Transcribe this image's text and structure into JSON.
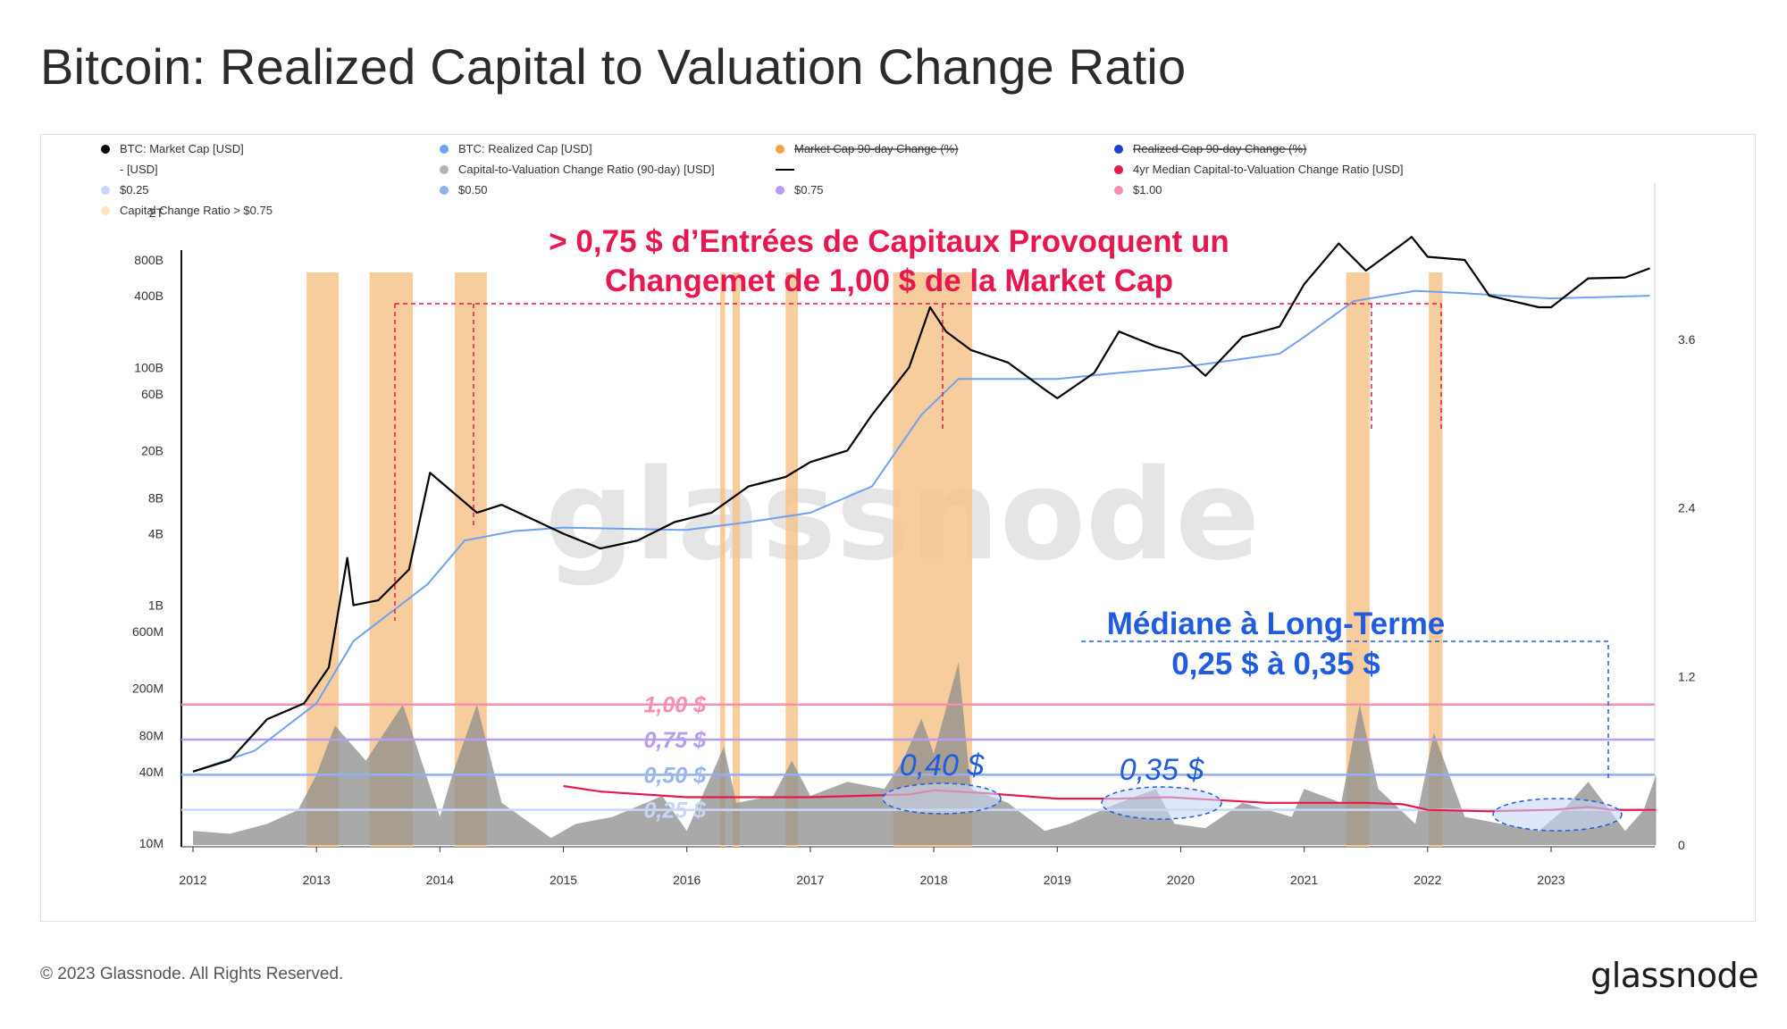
{
  "header": {
    "title": "Bitcoin: Realized Capital to Valuation Change Ratio"
  },
  "footer": {
    "copyright": "© 2023 Glassnode. All Rights Reserved.",
    "brand": "glassnode"
  },
  "watermark": "glassnode",
  "legend": [
    {
      "label": "BTC: Market Cap [USD]",
      "color": "#000000",
      "style": "dot"
    },
    {
      "label": "BTC: Realized Cap [USD]",
      "color": "#6fa1f2",
      "style": "dot"
    },
    {
      "label": "Market Cap 90-day Change (%)",
      "color": "#f5a04b",
      "style": "strike"
    },
    {
      "label": "Realized Cap 90-day Change (%)",
      "color": "#1e3fd4",
      "style": "strike"
    },
    {
      "label": "- [USD]",
      "color": "",
      "style": "none"
    },
    {
      "label": "Capital-to-Valuation Change Ratio (90-day) [USD]",
      "color": "#b4b4b4",
      "style": "dot"
    },
    {
      "label": "",
      "color": "#000000",
      "style": "line"
    },
    {
      "label": "4yr Median Capital-to-Valuation Change Ratio [USD]",
      "color": "#e8174d",
      "style": "dot"
    },
    {
      "label": "$0.25",
      "color": "#c9d8f7",
      "style": "dot"
    },
    {
      "label": "$0.50",
      "color": "#8fb0f2",
      "style": "dot"
    },
    {
      "label": "$0.75",
      "color": "#b89cf0",
      "style": "dot"
    },
    {
      "label": "$1.00",
      "color": "#f68fb0",
      "style": "dot"
    },
    {
      "label": "Capital Change Ratio > $0.75",
      "color": "#fde5c6",
      "style": "dot"
    }
  ],
  "annotations": {
    "headline_line1": "> 0,75 $ d’Entrées de Capitaux Provoquent un",
    "headline_line2": "Changemet de 1,00 $ de la  Market Cap",
    "median_line1": "Médiane à Long-Terme",
    "median_line2": "0,25 $ à 0,35 $",
    "label_040": "0,40 $",
    "label_035": "0,35 $",
    "level_100": "1,00 $",
    "level_075": "0,75 $",
    "level_050": "0,50 $",
    "level_025": "0,25 $"
  },
  "colors": {
    "market_cap": "#000000",
    "realized_cap": "#6fa1f2",
    "ratio_area": "#8c8c8c",
    "median": "#e8174d",
    "band_highlight": "#f7c48c",
    "level_025": "#c9d8f7",
    "level_050": "#8fb0f2",
    "level_075": "#b89cf0",
    "level_100": "#f68fb0",
    "annotation_red": "#e8174d",
    "annotation_blue": "#1f5ce0"
  },
  "chart_data": {
    "type": "line",
    "title": "Bitcoin: Realized Capital to Valuation Change Ratio",
    "x_ticks": [
      "2012",
      "2013",
      "2014",
      "2015",
      "2016",
      "2017",
      "2018",
      "2019",
      "2020",
      "2021",
      "2022",
      "2023"
    ],
    "left_axis": {
      "scale": "log",
      "ticks": [
        "2T",
        "800B",
        "400B",
        "100B",
        "60B",
        "20B",
        "8B",
        "4B",
        "1B",
        "600M",
        "200M",
        "80M",
        "40M",
        "10M"
      ]
    },
    "right_axis": {
      "scale": "linear",
      "ticks": [
        "3.6",
        "2.4",
        "1.2",
        "0"
      ],
      "ylim": [
        0,
        4.75
      ]
    },
    "market_cap_usd": {
      "x": [
        2012.0,
        2012.3,
        2012.6,
        2012.9,
        2013.1,
        2013.25,
        2013.3,
        2013.5,
        2013.75,
        2013.92,
        2014.1,
        2014.3,
        2014.5,
        2014.8,
        2015.0,
        2015.3,
        2015.6,
        2015.9,
        2016.2,
        2016.5,
        2016.8,
        2017.0,
        2017.3,
        2017.5,
        2017.8,
        2017.97,
        2018.1,
        2018.3,
        2018.6,
        2018.9,
        2019.0,
        2019.3,
        2019.5,
        2019.8,
        2020.0,
        2020.2,
        2020.5,
        2020.8,
        2021.0,
        2021.28,
        2021.5,
        2021.8,
        2021.87,
        2022.0,
        2022.3,
        2022.5,
        2022.9,
        2023.0,
        2023.3,
        2023.6,
        2023.8
      ],
      "y": [
        40000000.0,
        50000000.0,
        110000000.0,
        150000000.0,
        300000000.0,
        2500000000.0,
        1000000000.0,
        1100000000.0,
        2000000000.0,
        13000000000.0,
        9000000000.0,
        6000000000.0,
        7000000000.0,
        5000000000.0,
        4000000000.0,
        3000000000.0,
        3500000000.0,
        5000000000.0,
        6000000000.0,
        10000000000.0,
        12000000000.0,
        16000000000.0,
        20000000000.0,
        40000000000.0,
        100000000000.0,
        320000000000.0,
        200000000000.0,
        140000000000.0,
        110000000000.0,
        65000000000.0,
        55000000000.0,
        90000000000.0,
        200000000000.0,
        150000000000.0,
        130000000000.0,
        85000000000.0,
        180000000000.0,
        220000000000.0,
        500000000000.0,
        1100000000000.0,
        650000000000.0,
        1100000000000.0,
        1250000000000.0,
        850000000000.0,
        800000000000.0,
        400000000000.0,
        320000000000.0,
        320000000000.0,
        560000000000.0,
        570000000000.0,
        680000000000.0
      ]
    },
    "realized_cap_usd": {
      "x": [
        2012.0,
        2012.5,
        2013.0,
        2013.3,
        2013.9,
        2014.2,
        2014.6,
        2015.0,
        2016.0,
        2016.5,
        2017.0,
        2017.5,
        2017.9,
        2018.2,
        2019.0,
        2019.5,
        2020.0,
        2020.8,
        2021.0,
        2021.4,
        2021.9,
        2022.3,
        2022.8,
        2023.0,
        2023.8
      ],
      "y": [
        40000000.0,
        60000000.0,
        150000000.0,
        500000000.0,
        1500000000.0,
        3500000000.0,
        4200000000.0,
        4500000000.0,
        4300000000.0,
        5000000000.0,
        6000000000.0,
        10000000000.0,
        40000000000.0,
        80000000000.0,
        80000000000.0,
        90000000000.0,
        100000000000.0,
        130000000000.0,
        180000000000.0,
        360000000000.0,
        440000000000.0,
        420000000000.0,
        390000000000.0,
        380000000000.0,
        400000000000.0
      ]
    },
    "ratio_90d_usd": {
      "x": [
        2012.0,
        2012.3,
        2012.6,
        2012.85,
        2013.0,
        2013.15,
        2013.4,
        2013.7,
        2013.85,
        2014.0,
        2014.1,
        2014.3,
        2014.5,
        2014.9,
        2015.1,
        2015.4,
        2015.8,
        2016.0,
        2016.3,
        2016.4,
        2016.7,
        2016.85,
        2017.0,
        2017.3,
        2017.6,
        2017.75,
        2017.9,
        2018.0,
        2018.2,
        2018.3,
        2018.6,
        2018.9,
        2019.1,
        2019.5,
        2019.8,
        2019.95,
        2020.2,
        2020.5,
        2020.9,
        2021.0,
        2021.3,
        2021.45,
        2021.6,
        2021.9,
        2022.05,
        2022.3,
        2022.6,
        2022.9,
        2023.1,
        2023.3,
        2023.6,
        2023.75,
        2023.85
      ],
      "y": [
        0.1,
        0.08,
        0.15,
        0.25,
        0.5,
        0.85,
        0.6,
        1.0,
        0.6,
        0.2,
        0.5,
        1.0,
        0.3,
        0.05,
        0.15,
        0.2,
        0.35,
        0.1,
        0.7,
        0.3,
        0.35,
        0.6,
        0.35,
        0.45,
        0.4,
        0.6,
        0.9,
        0.65,
        1.3,
        0.4,
        0.3,
        0.1,
        0.15,
        0.3,
        0.4,
        0.15,
        0.12,
        0.3,
        0.2,
        0.4,
        0.3,
        1.0,
        0.4,
        0.15,
        0.8,
        0.2,
        0.15,
        0.1,
        0.25,
        0.45,
        0.1,
        0.25,
        0.5
      ]
    },
    "median_4yr_usd": {
      "x": [
        2015.0,
        2015.3,
        2016.0,
        2017.0,
        2017.8,
        2018.0,
        2018.4,
        2019.0,
        2019.5,
        2019.9,
        2020.3,
        2020.7,
        2021.0,
        2021.5,
        2021.8,
        2022.0,
        2022.5,
        2023.0,
        2023.3,
        2023.5,
        2023.85
      ],
      "y": [
        0.42,
        0.38,
        0.34,
        0.34,
        0.36,
        0.39,
        0.37,
        0.33,
        0.33,
        0.34,
        0.32,
        0.3,
        0.3,
        0.3,
        0.29,
        0.25,
        0.24,
        0.25,
        0.27,
        0.25,
        0.25
      ]
    },
    "thresholds_usd": [
      0.25,
      0.5,
      0.75,
      1.0
    ],
    "highlight_periods_ratio_above_075": [
      [
        2012.92,
        2013.18
      ],
      [
        2013.43,
        2013.78
      ],
      [
        2014.12,
        2014.38
      ],
      [
        2016.27,
        2016.31
      ],
      [
        2016.37,
        2016.43
      ],
      [
        2016.8,
        2016.9
      ],
      [
        2017.67,
        2018.31
      ],
      [
        2021.34,
        2021.53
      ],
      [
        2022.01,
        2022.12
      ]
    ]
  }
}
